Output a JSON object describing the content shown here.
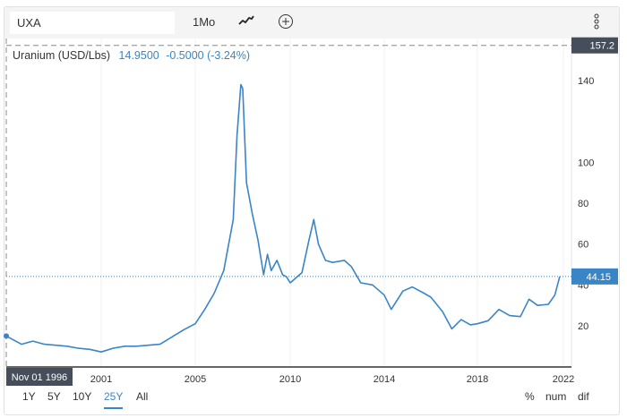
{
  "toolbar": {
    "symbol": "UXA",
    "interval": "1Mo",
    "chart_type_icon": "line-chart-icon",
    "add_icon": "plus-circle-icon",
    "menu_icon": "kebab-menu-icon"
  },
  "legend": {
    "name": "Uranium (USD/Lbs)",
    "price": "14.9500",
    "change": "-0.5000 (-3.24%)"
  },
  "ranges": [
    "1Y",
    "5Y",
    "10Y",
    "25Y",
    "All"
  ],
  "active_range": "25Y",
  "modes": [
    "%",
    "num",
    "dif"
  ],
  "colors": {
    "line": "#3a85c6",
    "accent": "#3a85c6",
    "tag": "#464e5b"
  },
  "chart_data": {
    "type": "line",
    "title": "Uranium (USD/Lbs)",
    "xlabel": "",
    "ylabel": "",
    "ylim": [
      0,
      157.2
    ],
    "yticks": [
      20,
      40,
      60,
      80,
      100,
      140
    ],
    "xticks": [
      "2001",
      "2005",
      "2010",
      "2014",
      "2018",
      "2022"
    ],
    "crosshair_x_label": "Nov 01 1996",
    "crosshair_y_label": "157.2",
    "last_value_label": "44.15",
    "last_value": 44.15,
    "series": [
      {
        "name": "Uranium",
        "points": [
          [
            1996.83,
            15
          ],
          [
            1997.5,
            11
          ],
          [
            1998,
            12.5
          ],
          [
            1998.5,
            11
          ],
          [
            1999,
            10.5
          ],
          [
            1999.5,
            10
          ],
          [
            2000,
            9
          ],
          [
            2000.5,
            8.5
          ],
          [
            2001,
            7.2
          ],
          [
            2001.5,
            9
          ],
          [
            2002,
            10
          ],
          [
            2002.5,
            10
          ],
          [
            2003,
            10.5
          ],
          [
            2003.5,
            11
          ],
          [
            2004,
            14.5
          ],
          [
            2004.5,
            18
          ],
          [
            2005,
            21
          ],
          [
            2005.5,
            28
          ],
          [
            2006,
            36
          ],
          [
            2006.5,
            47
          ],
          [
            2007,
            72
          ],
          [
            2007.2,
            113
          ],
          [
            2007.4,
            138
          ],
          [
            2007.5,
            136
          ],
          [
            2007.7,
            90
          ],
          [
            2008,
            75
          ],
          [
            2008.3,
            62
          ],
          [
            2008.6,
            45
          ],
          [
            2008.8,
            55
          ],
          [
            2009,
            47
          ],
          [
            2009.3,
            52
          ],
          [
            2009.6,
            45
          ],
          [
            2009.8,
            44
          ],
          [
            2010,
            41
          ],
          [
            2010.5,
            46
          ],
          [
            2010.8,
            62
          ],
          [
            2011,
            72
          ],
          [
            2011.2,
            60
          ],
          [
            2011.5,
            52
          ],
          [
            2011.8,
            51
          ],
          [
            2012.3,
            52
          ],
          [
            2012.6,
            49
          ],
          [
            2013,
            41
          ],
          [
            2013.5,
            40
          ],
          [
            2014,
            35
          ],
          [
            2014.3,
            28
          ],
          [
            2014.8,
            37
          ],
          [
            2015.2,
            39
          ],
          [
            2015.7,
            36
          ],
          [
            2016,
            34
          ],
          [
            2016.5,
            27
          ],
          [
            2016.9,
            18.5
          ],
          [
            2017.3,
            23
          ],
          [
            2017.7,
            20.5
          ],
          [
            2018,
            21
          ],
          [
            2018.5,
            22.5
          ],
          [
            2019,
            28
          ],
          [
            2019.5,
            25
          ],
          [
            2020,
            24.5
          ],
          [
            2020.4,
            33
          ],
          [
            2020.8,
            30
          ],
          [
            2021.3,
            30.5
          ],
          [
            2021.6,
            35
          ],
          [
            2021.83,
            44.15
          ]
        ]
      }
    ]
  }
}
